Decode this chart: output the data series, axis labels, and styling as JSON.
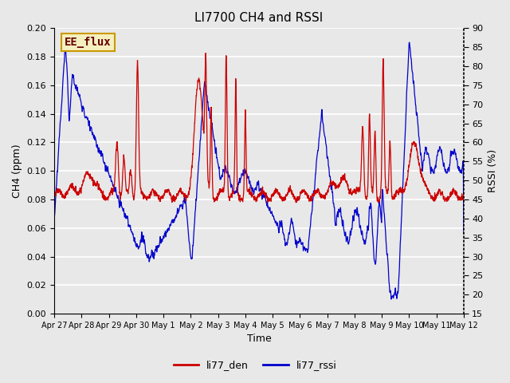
{
  "title": "LI7700 CH4 and RSSI",
  "xlabel": "Time",
  "ylabel_left": "CH4 (ppm)",
  "ylabel_right": "RSSI (%)",
  "ylim_left": [
    0.0,
    0.2
  ],
  "ylim_right": [
    15,
    90
  ],
  "yticks_left": [
    0.0,
    0.02,
    0.04,
    0.06,
    0.08,
    0.1,
    0.12,
    0.14,
    0.16,
    0.18,
    0.2
  ],
  "yticks_right": [
    15,
    20,
    25,
    30,
    35,
    40,
    45,
    50,
    55,
    60,
    65,
    70,
    75,
    80,
    85,
    90
  ],
  "color_ch4": "#cc0000",
  "color_rssi": "#0000cc",
  "legend_labels": [
    "li77_den",
    "li77_rssi"
  ],
  "annotation_text": "EE_flux",
  "annotation_bg": "#f5f0c0",
  "annotation_edge": "#cc9900",
  "annotation_text_color": "#660000",
  "background_color": "#e8e8e8",
  "fig_background": "#e8e8e8",
  "grid_color": "white",
  "title_fontsize": 11,
  "label_fontsize": 9,
  "tick_fontsize": 8,
  "xtick_labels": [
    "Apr 27",
    "Apr 28",
    "Apr 29",
    "Apr 30",
    "May 1",
    "May 2",
    "May 3",
    "May 4",
    "May 5",
    "May 6",
    "May 7",
    "May 8",
    "May 9",
    "May 10",
    "May 11",
    "May 12"
  ],
  "linewidth": 0.9
}
